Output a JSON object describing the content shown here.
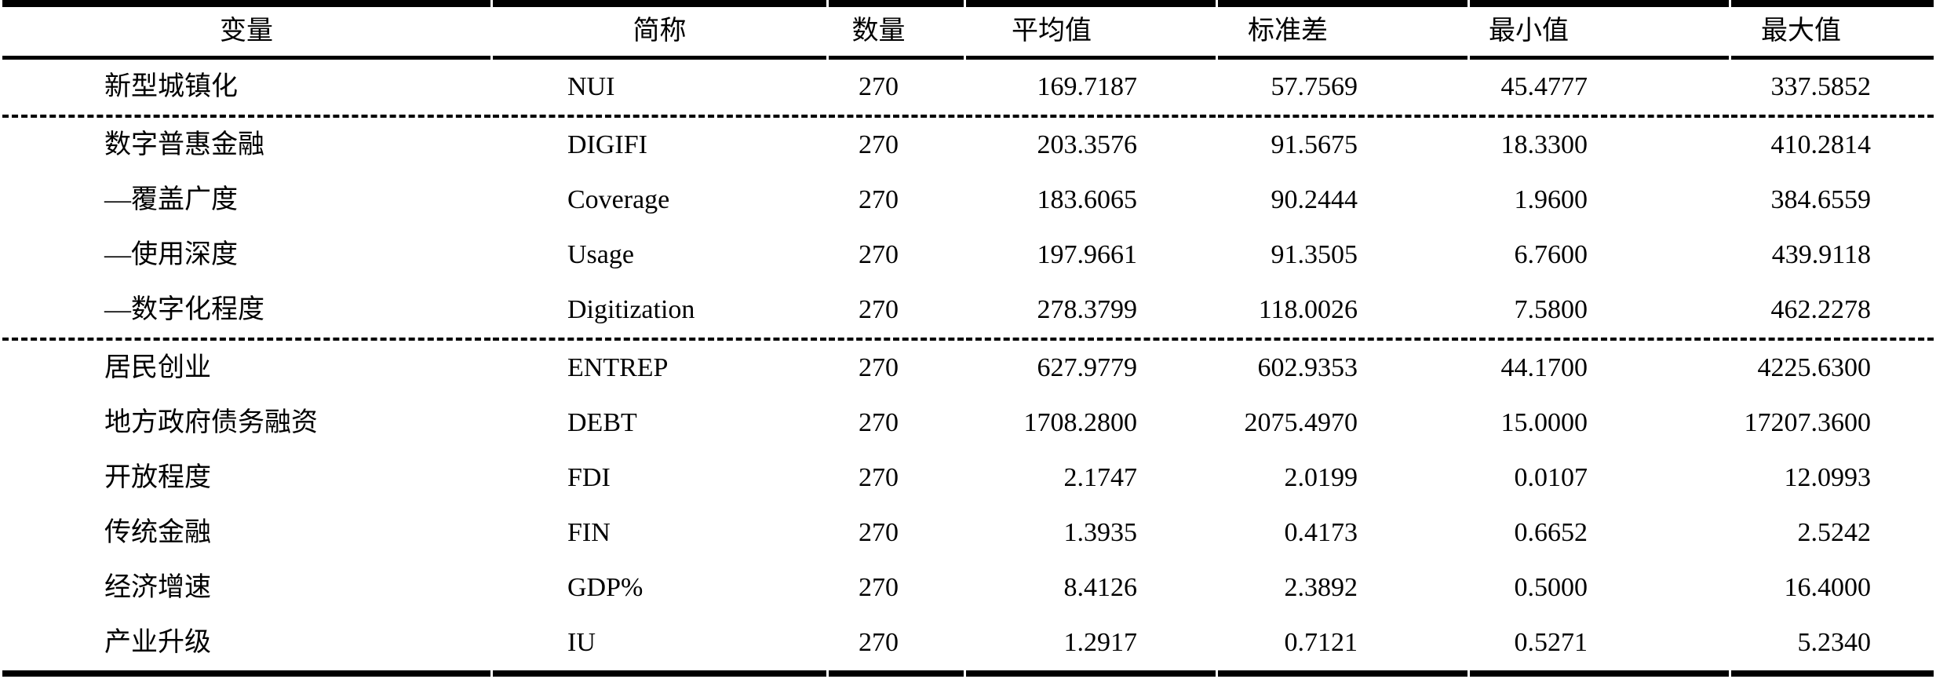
{
  "colors": {
    "text": "#000000",
    "rule": "#000000",
    "background": "#ffffff"
  },
  "table": {
    "columns": [
      "变量",
      "简称",
      "数量",
      "平均值",
      "标准差",
      "最小值",
      "最大值"
    ],
    "dashed_after": [
      0,
      4
    ],
    "rows": [
      {
        "variable": "新型城镇化",
        "abbr": "NUI",
        "n": "270",
        "mean": "169.7187",
        "sd": "57.7569",
        "min": "45.4777",
        "max": "337.5852"
      },
      {
        "variable": "数字普惠金融",
        "abbr": "DIGIFI",
        "n": "270",
        "mean": "203.3576",
        "sd": "91.5675",
        "min": "18.3300",
        "max": "410.2814"
      },
      {
        "variable": "—覆盖广度",
        "abbr": "Coverage",
        "n": "270",
        "mean": "183.6065",
        "sd": "90.2444",
        "min": "1.9600",
        "max": "384.6559"
      },
      {
        "variable": "—使用深度",
        "abbr": "Usage",
        "n": "270",
        "mean": "197.9661",
        "sd": "91.3505",
        "min": "6.7600",
        "max": "439.9118"
      },
      {
        "variable": "—数字化程度",
        "abbr": "Digitization",
        "n": "270",
        "mean": "278.3799",
        "sd": "118.0026",
        "min": "7.5800",
        "max": "462.2278"
      },
      {
        "variable": "居民创业",
        "abbr": "ENTREP",
        "n": "270",
        "mean": "627.9779",
        "sd": "602.9353",
        "min": "44.1700",
        "max": "4225.6300"
      },
      {
        "variable": "地方政府债务融资",
        "abbr": "DEBT",
        "n": "270",
        "mean": "1708.2800",
        "sd": "2075.4970",
        "min": "15.0000",
        "max": "17207.3600"
      },
      {
        "variable": "开放程度",
        "abbr": "FDI",
        "n": "270",
        "mean": "2.1747",
        "sd": "2.0199",
        "min": "0.0107",
        "max": "12.0993"
      },
      {
        "variable": "传统金融",
        "abbr": "FIN",
        "n": "270",
        "mean": "1.3935",
        "sd": "0.4173",
        "min": "0.6652",
        "max": "2.5242"
      },
      {
        "variable": "经济增速",
        "abbr": "GDP%",
        "n": "270",
        "mean": "8.4126",
        "sd": "2.3892",
        "min": "0.5000",
        "max": "16.4000"
      },
      {
        "variable": "产业升级",
        "abbr": "IU",
        "n": "270",
        "mean": "1.2917",
        "sd": "0.7121",
        "min": "0.5271",
        "max": "5.2340"
      }
    ]
  }
}
